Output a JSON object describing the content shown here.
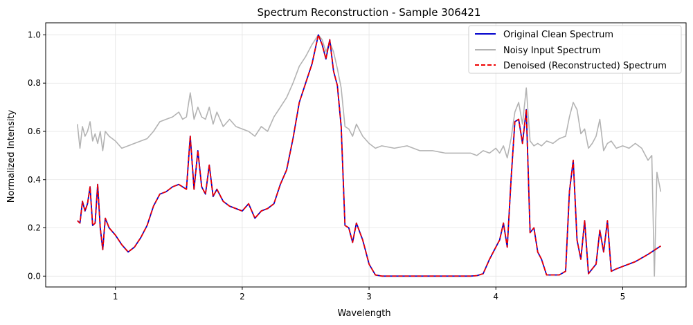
{
  "chart_data": {
    "type": "line",
    "title": "Spectrum Reconstruction - Sample 306421",
    "xlabel": "Wavelength",
    "ylabel": "Normalized Intensity",
    "xlim": [
      0.45,
      5.5
    ],
    "ylim": [
      -0.045,
      1.05
    ],
    "xticks": [
      1,
      2,
      3,
      4,
      5
    ],
    "yticks": [
      0.0,
      0.2,
      0.4,
      0.6,
      0.8,
      1.0
    ],
    "grid": true,
    "legend_position": "top-right",
    "series": [
      {
        "name": "Original Clean Spectrum",
        "color": "#0000cc",
        "style": "solid",
        "x": [
          0.7,
          0.72,
          0.74,
          0.76,
          0.78,
          0.8,
          0.82,
          0.84,
          0.86,
          0.88,
          0.9,
          0.92,
          0.95,
          1.0,
          1.05,
          1.1,
          1.15,
          1.2,
          1.25,
          1.3,
          1.35,
          1.4,
          1.45,
          1.5,
          1.53,
          1.56,
          1.59,
          1.62,
          1.65,
          1.68,
          1.71,
          1.74,
          1.77,
          1.8,
          1.85,
          1.9,
          1.95,
          2.0,
          2.05,
          2.1,
          2.15,
          2.2,
          2.25,
          2.3,
          2.35,
          2.4,
          2.45,
          2.5,
          2.55,
          2.6,
          2.63,
          2.66,
          2.69,
          2.72,
          2.75,
          2.78,
          2.81,
          2.84,
          2.87,
          2.9,
          2.95,
          3.0,
          3.05,
          3.1,
          3.2,
          3.3,
          3.4,
          3.5,
          3.6,
          3.7,
          3.8,
          3.85,
          3.9,
          3.95,
          4.0,
          4.03,
          4.06,
          4.09,
          4.12,
          4.15,
          4.18,
          4.21,
          4.24,
          4.27,
          4.3,
          4.33,
          4.36,
          4.4,
          4.45,
          4.5,
          4.55,
          4.58,
          4.61,
          4.64,
          4.67,
          4.7,
          4.73,
          4.76,
          4.79,
          4.82,
          4.85,
          4.88,
          4.91,
          4.95,
          5.0,
          5.1,
          5.2,
          5.3
        ],
        "values": [
          0.23,
          0.22,
          0.31,
          0.27,
          0.3,
          0.37,
          0.21,
          0.22,
          0.38,
          0.2,
          0.11,
          0.24,
          0.2,
          0.17,
          0.13,
          0.1,
          0.12,
          0.16,
          0.21,
          0.29,
          0.34,
          0.35,
          0.37,
          0.38,
          0.37,
          0.36,
          0.58,
          0.36,
          0.52,
          0.37,
          0.34,
          0.46,
          0.33,
          0.36,
          0.31,
          0.29,
          0.28,
          0.27,
          0.3,
          0.24,
          0.27,
          0.28,
          0.3,
          0.38,
          0.44,
          0.57,
          0.72,
          0.8,
          0.88,
          1.0,
          0.96,
          0.9,
          0.98,
          0.85,
          0.79,
          0.62,
          0.21,
          0.2,
          0.14,
          0.22,
          0.15,
          0.05,
          0.005,
          0.0,
          0.0,
          0.0,
          0.0,
          0.0,
          0.0,
          0.0,
          0.0,
          0.002,
          0.01,
          0.07,
          0.12,
          0.15,
          0.22,
          0.12,
          0.4,
          0.64,
          0.65,
          0.55,
          0.69,
          0.18,
          0.2,
          0.1,
          0.07,
          0.005,
          0.005,
          0.005,
          0.02,
          0.35,
          0.48,
          0.15,
          0.07,
          0.23,
          0.01,
          0.03,
          0.05,
          0.19,
          0.1,
          0.23,
          0.02,
          0.03,
          0.04,
          0.06,
          0.09,
          0.125
        ]
      },
      {
        "name": "Noisy Input Spectrum",
        "color": "#b3b3b3",
        "style": "solid",
        "x": [
          0.7,
          0.72,
          0.74,
          0.76,
          0.78,
          0.8,
          0.82,
          0.84,
          0.86,
          0.88,
          0.9,
          0.92,
          0.95,
          1.0,
          1.05,
          1.1,
          1.15,
          1.2,
          1.25,
          1.3,
          1.35,
          1.4,
          1.45,
          1.5,
          1.53,
          1.56,
          1.59,
          1.62,
          1.65,
          1.68,
          1.71,
          1.74,
          1.77,
          1.8,
          1.85,
          1.9,
          1.95,
          2.0,
          2.05,
          2.1,
          2.15,
          2.2,
          2.25,
          2.3,
          2.35,
          2.4,
          2.45,
          2.5,
          2.55,
          2.6,
          2.63,
          2.66,
          2.69,
          2.72,
          2.75,
          2.78,
          2.81,
          2.84,
          2.87,
          2.9,
          2.95,
          3.0,
          3.05,
          3.1,
          3.2,
          3.3,
          3.4,
          3.5,
          3.6,
          3.7,
          3.8,
          3.85,
          3.9,
          3.95,
          4.0,
          4.03,
          4.06,
          4.09,
          4.12,
          4.15,
          4.18,
          4.21,
          4.24,
          4.27,
          4.3,
          4.33,
          4.36,
          4.4,
          4.45,
          4.5,
          4.55,
          4.58,
          4.61,
          4.64,
          4.67,
          4.7,
          4.73,
          4.76,
          4.79,
          4.82,
          4.85,
          4.88,
          4.91,
          4.95,
          5.0,
          5.05,
          5.1,
          5.15,
          5.2,
          5.23,
          5.25,
          5.27,
          5.3
        ],
        "values": [
          0.63,
          0.53,
          0.62,
          0.58,
          0.6,
          0.64,
          0.56,
          0.59,
          0.55,
          0.6,
          0.52,
          0.6,
          0.58,
          0.56,
          0.53,
          0.54,
          0.55,
          0.56,
          0.57,
          0.6,
          0.64,
          0.65,
          0.66,
          0.68,
          0.65,
          0.66,
          0.76,
          0.65,
          0.7,
          0.66,
          0.65,
          0.7,
          0.63,
          0.68,
          0.62,
          0.65,
          0.62,
          0.61,
          0.6,
          0.58,
          0.62,
          0.6,
          0.66,
          0.7,
          0.74,
          0.8,
          0.87,
          0.91,
          0.96,
          1.0,
          0.98,
          0.93,
          0.97,
          0.93,
          0.86,
          0.78,
          0.62,
          0.61,
          0.58,
          0.63,
          0.58,
          0.55,
          0.53,
          0.54,
          0.53,
          0.54,
          0.52,
          0.52,
          0.51,
          0.51,
          0.51,
          0.5,
          0.52,
          0.51,
          0.53,
          0.51,
          0.54,
          0.49,
          0.57,
          0.68,
          0.72,
          0.63,
          0.78,
          0.56,
          0.54,
          0.55,
          0.54,
          0.56,
          0.55,
          0.57,
          0.58,
          0.66,
          0.72,
          0.69,
          0.59,
          0.61,
          0.53,
          0.55,
          0.58,
          0.65,
          0.52,
          0.55,
          0.56,
          0.53,
          0.54,
          0.53,
          0.55,
          0.53,
          0.48,
          0.5,
          0.0,
          0.43,
          0.35
        ]
      },
      {
        "name": "Denoised (Reconstructed) Spectrum",
        "color": "#ee0000",
        "style": "dashed",
        "x": [
          0.7,
          0.72,
          0.74,
          0.76,
          0.78,
          0.8,
          0.82,
          0.84,
          0.86,
          0.88,
          0.9,
          0.92,
          0.95,
          1.0,
          1.05,
          1.1,
          1.15,
          1.2,
          1.25,
          1.3,
          1.35,
          1.4,
          1.45,
          1.5,
          1.53,
          1.56,
          1.59,
          1.62,
          1.65,
          1.68,
          1.71,
          1.74,
          1.77,
          1.8,
          1.85,
          1.9,
          1.95,
          2.0,
          2.05,
          2.1,
          2.15,
          2.2,
          2.25,
          2.3,
          2.35,
          2.4,
          2.45,
          2.5,
          2.55,
          2.6,
          2.63,
          2.66,
          2.69,
          2.72,
          2.75,
          2.78,
          2.81,
          2.84,
          2.87,
          2.9,
          2.95,
          3.0,
          3.05,
          3.1,
          3.2,
          3.3,
          3.4,
          3.5,
          3.6,
          3.7,
          3.8,
          3.85,
          3.9,
          3.95,
          4.0,
          4.03,
          4.06,
          4.09,
          4.12,
          4.15,
          4.18,
          4.21,
          4.24,
          4.27,
          4.3,
          4.33,
          4.36,
          4.4,
          4.45,
          4.5,
          4.55,
          4.58,
          4.61,
          4.64,
          4.67,
          4.7,
          4.73,
          4.76,
          4.79,
          4.82,
          4.85,
          4.88,
          4.91,
          4.95,
          5.0,
          5.1,
          5.2,
          5.3
        ],
        "values": [
          0.23,
          0.22,
          0.31,
          0.27,
          0.3,
          0.37,
          0.21,
          0.22,
          0.38,
          0.2,
          0.11,
          0.24,
          0.2,
          0.17,
          0.13,
          0.1,
          0.12,
          0.16,
          0.21,
          0.29,
          0.34,
          0.35,
          0.37,
          0.38,
          0.37,
          0.36,
          0.58,
          0.36,
          0.52,
          0.37,
          0.34,
          0.46,
          0.33,
          0.36,
          0.31,
          0.29,
          0.28,
          0.27,
          0.3,
          0.24,
          0.27,
          0.28,
          0.3,
          0.38,
          0.44,
          0.57,
          0.72,
          0.8,
          0.88,
          1.0,
          0.96,
          0.9,
          0.98,
          0.85,
          0.79,
          0.62,
          0.21,
          0.2,
          0.14,
          0.22,
          0.15,
          0.05,
          0.005,
          0.0,
          0.0,
          0.0,
          0.0,
          0.0,
          0.0,
          0.0,
          0.0,
          0.002,
          0.01,
          0.07,
          0.12,
          0.15,
          0.22,
          0.12,
          0.4,
          0.64,
          0.65,
          0.55,
          0.69,
          0.18,
          0.2,
          0.1,
          0.07,
          0.005,
          0.005,
          0.005,
          0.02,
          0.35,
          0.48,
          0.15,
          0.07,
          0.23,
          0.01,
          0.03,
          0.05,
          0.19,
          0.1,
          0.23,
          0.02,
          0.03,
          0.04,
          0.06,
          0.09,
          0.125
        ]
      }
    ]
  }
}
